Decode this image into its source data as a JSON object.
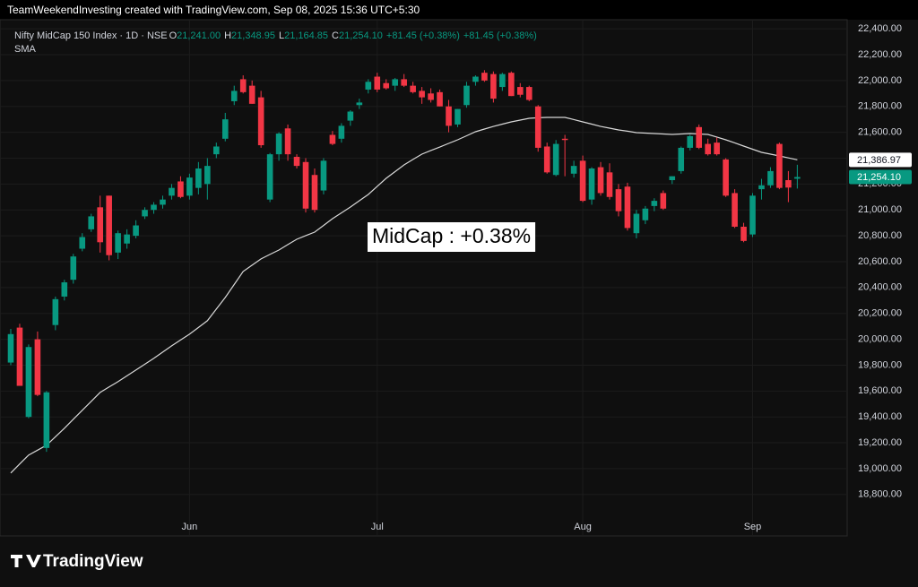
{
  "chart_data": {
    "type": "candlestick",
    "header": "TeamWeekendInvesting created with TradingView.com, Sep 08, 2025 15:36 UTC+5:30",
    "title": "Nifty MidCap 150 Index · 1D · NSE",
    "ohlc": [
      {
        "key": "O",
        "label": "21,241.00"
      },
      {
        "key": "H",
        "label": "21,348.95"
      },
      {
        "key": "L",
        "label": "21,164.85"
      },
      {
        "key": "C",
        "label": "21,254.10"
      }
    ],
    "change_labels": [
      "+81.45 (+0.38%)",
      "+81.45 (+0.38%)"
    ],
    "annotation": "MidCap : +0.38%",
    "logo": "TradingView",
    "categories": [
      null,
      null,
      null,
      null,
      null,
      null,
      null,
      null,
      null,
      null,
      null,
      null,
      null,
      null,
      null,
      null,
      null,
      null,
      null,
      null,
      "Jun",
      null,
      null,
      null,
      null,
      null,
      null,
      null,
      null,
      null,
      null,
      null,
      null,
      null,
      null,
      null,
      null,
      null,
      null,
      null,
      null,
      "Jul",
      null,
      null,
      null,
      null,
      null,
      null,
      null,
      null,
      null,
      null,
      null,
      null,
      null,
      null,
      null,
      null,
      null,
      null,
      null,
      null,
      null,
      null,
      "Aug",
      null,
      null,
      null,
      null,
      null,
      null,
      null,
      null,
      null,
      null,
      null,
      null,
      null,
      null,
      null,
      null,
      null,
      null,
      "Sep",
      null,
      null,
      null,
      null,
      null
    ],
    "open": [
      19820,
      20090,
      19400,
      20000,
      19160,
      20110,
      20330,
      20460,
      20700,
      20850,
      21020,
      21110,
      20670,
      20740,
      20800,
      20950,
      21000,
      21040,
      21110,
      21220,
      21110,
      21170,
      21200,
      21430,
      21550,
      21840,
      22010,
      21960,
      21870,
      21080,
      21430,
      21630,
      21410,
      21370,
      21270,
      21150,
      21580,
      21550,
      21690,
      21810,
      21930,
      22030,
      21980,
      21960,
      22010,
      21960,
      21920,
      21900,
      21910,
      21800,
      21660,
      21810,
      21990,
      22060,
      22050,
      21950,
      22060,
      21950,
      21950,
      21800,
      21490,
      21270,
      21550,
      21280,
      21380,
      21080,
      21330,
      21290,
      21160,
      21180,
      20820,
      20920,
      21030,
      21130,
      21230,
      21300,
      21480,
      21640,
      21510,
      21520,
      21390,
      21130,
      20870,
      20810,
      21160,
      21190,
      21510,
      21230,
      21241
    ],
    "high": [
      20080,
      20120,
      19960,
      20060,
      19600,
      20330,
      20460,
      20660,
      20820,
      20970,
      21110,
      21110,
      20840,
      20850,
      20920,
      21020,
      21060,
      21110,
      21200,
      21260,
      21280,
      21370,
      21400,
      21520,
      21750,
      21960,
      22040,
      22000,
      21920,
      21440,
      21600,
      21660,
      21430,
      21400,
      21320,
      21400,
      21610,
      21670,
      21770,
      21860,
      22010,
      22060,
      22010,
      22020,
      22050,
      21990,
      21950,
      21940,
      21930,
      21850,
      21780,
      21990,
      22040,
      22080,
      22070,
      22060,
      22070,
      21980,
      21960,
      21810,
      21520,
      21540,
      21580,
      21380,
      21420,
      21330,
      21370,
      21360,
      21200,
      21210,
      21000,
      21030,
      21090,
      21150,
      21260,
      21490,
      21580,
      21660,
      21550,
      21560,
      21400,
      21160,
      20900,
      21130,
      21240,
      21330,
      21520,
      21300,
      21348.95
    ],
    "low": [
      19800,
      19650,
      19390,
      19560,
      19130,
      20070,
      20300,
      20430,
      20680,
      20830,
      20670,
      20610,
      20620,
      20700,
      20780,
      20930,
      20970,
      21010,
      21080,
      21090,
      21080,
      21120,
      21080,
      21400,
      21530,
      21810,
      21900,
      21820,
      21480,
      21060,
      21380,
      21380,
      21320,
      20980,
      20980,
      21120,
      21500,
      21520,
      21650,
      21780,
      21900,
      21910,
      21930,
      21920,
      21950,
      21900,
      21820,
      21830,
      21800,
      21600,
      21640,
      21790,
      21960,
      21990,
      21830,
      21920,
      21880,
      21870,
      21840,
      21450,
      21280,
      21260,
      21260,
      21250,
      21060,
      21040,
      21110,
      21080,
      20950,
      20840,
      20780,
      20890,
      20990,
      21000,
      21200,
      21280,
      21460,
      21470,
      21420,
      21420,
      21100,
      20860,
      20750,
      20790,
      21080,
      21170,
      21160,
      21060,
      21164.85
    ],
    "close": [
      20040,
      19640,
      19940,
      19570,
      19590,
      20310,
      20440,
      20640,
      20790,
      20950,
      20750,
      20650,
      20820,
      20810,
      20880,
      21000,
      21040,
      21080,
      21170,
      21100,
      21250,
      21320,
      21340,
      21490,
      21700,
      21920,
      21910,
      21820,
      21500,
      21430,
      21590,
      21430,
      21340,
      21010,
      21000,
      21380,
      21510,
      21650,
      21760,
      21830,
      21990,
      21930,
      21940,
      22010,
      21960,
      21910,
      21870,
      21850,
      21800,
      21650,
      21780,
      21960,
      22030,
      22000,
      21860,
      22050,
      21880,
      21890,
      21850,
      21480,
      21290,
      21510,
      21540,
      21340,
      21070,
      21320,
      21130,
      21100,
      20990,
      20860,
      20970,
      21010,
      21070,
      21010,
      21260,
      21480,
      21570,
      21480,
      21430,
      21430,
      21110,
      20870,
      20760,
      21110,
      21190,
      21300,
      21170,
      21172.65,
      21254.1
    ],
    "up_color": "#089981",
    "down_color": "#f23645",
    "sma": {
      "name": "SMA",
      "color": "#d8d8d8",
      "values": [
        18966,
        19036,
        19105,
        19143,
        19181,
        19247,
        19312,
        19382,
        19451,
        19520,
        19589,
        19631,
        19672,
        19717,
        19762,
        19807,
        19852,
        19901,
        19949,
        19994,
        20039,
        20091,
        20143,
        20233,
        20323,
        20424,
        20524,
        20573,
        20621,
        20656,
        20690,
        20732,
        20773,
        20801,
        20828,
        20880,
        20932,
        20977,
        21022,
        21071,
        21119,
        21182,
        21244,
        21296,
        21348,
        21390,
        21431,
        21459,
        21486,
        21514,
        21542,
        21573,
        21604,
        21625,
        21645,
        21663,
        21680,
        21694,
        21708,
        21712,
        21715,
        21715,
        21715,
        21698,
        21680,
        21663,
        21645,
        21632,
        21618,
        21608,
        21597,
        21594,
        21590,
        21587,
        21583,
        21587,
        21590,
        21587,
        21583,
        21563,
        21542,
        21518,
        21493,
        21469,
        21445,
        21431,
        21417,
        21402,
        21386.97
      ]
    },
    "price_labels": [
      {
        "value": 21386.97,
        "label": "21,386.97",
        "color": "#ffffff",
        "text_color": "#131722"
      },
      {
        "value": 21254.1,
        "label": "21,254.10",
        "color": "#089981",
        "text_color": "#ffffff"
      }
    ],
    "ylim": [
      18480,
      22470
    ],
    "yticks": [
      {
        "value": 18800,
        "label": "18,800.00"
      },
      {
        "value": 19000,
        "label": "19,000.00"
      },
      {
        "value": 19200,
        "label": "19,200.00"
      },
      {
        "value": 19400,
        "label": "19,400.00"
      },
      {
        "value": 19600,
        "label": "19,600.00"
      },
      {
        "value": 19800,
        "label": "19,800.00"
      },
      {
        "value": 20000,
        "label": "20,000.00"
      },
      {
        "value": 20200,
        "label": "20,200.00"
      },
      {
        "value": 20400,
        "label": "20,400.00"
      },
      {
        "value": 20600,
        "label": "20,600.00"
      },
      {
        "value": 20800,
        "label": "20,800.00"
      },
      {
        "value": 21000,
        "label": "21,000.00"
      },
      {
        "value": 21200,
        "label": "21,200.00"
      },
      {
        "value": 21400,
        "label": "21,400.00"
      },
      {
        "value": 21600,
        "label": "21,600.00"
      },
      {
        "value": 21800,
        "label": "21,800.00"
      },
      {
        "value": 22000,
        "label": "22,000.00"
      },
      {
        "value": 22200,
        "label": "22,200.00"
      },
      {
        "value": 22400,
        "label": "22,400.00"
      }
    ],
    "grid": true
  }
}
